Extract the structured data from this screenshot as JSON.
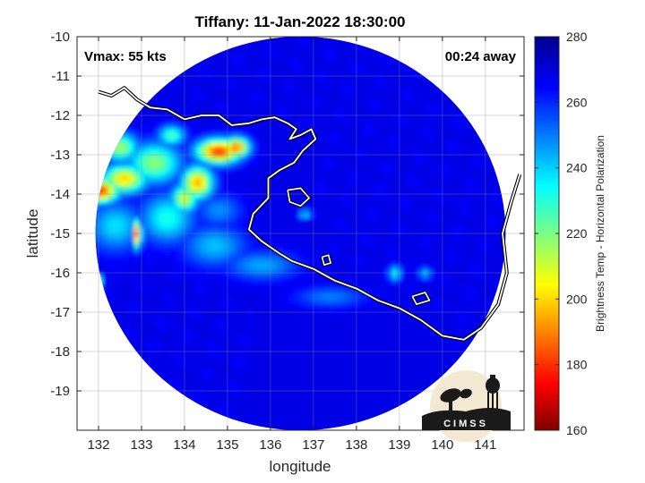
{
  "chart_data": {
    "type": "heatmap",
    "title": "Tiffany: 11-Jan-2022 18:30:00",
    "xlabel": "longitude",
    "ylabel": "latitude",
    "xlim": [
      131.5,
      141.9
    ],
    "ylim": [
      -20,
      -10
    ],
    "xticks": [
      132,
      133,
      134,
      135,
      136,
      137,
      138,
      139,
      140,
      141
    ],
    "yticks": [
      -10,
      -11,
      -12,
      -13,
      -14,
      -15,
      -16,
      -17,
      -18,
      -19
    ],
    "grid": true,
    "annotations": {
      "left": "Vmax: 55 kts",
      "right": "00:24 away"
    },
    "colorbar": {
      "label": "Brightness Temp - Horizontal Polarization",
      "range": [
        160,
        280
      ],
      "ticks": [
        160,
        180,
        200,
        220,
        240,
        260,
        280
      ],
      "colormap": "jet"
    },
    "swath": {
      "center_lon": 136.7,
      "center_lat": -15.0,
      "radius_deg_lat": 5.0
    },
    "background_temp": 268,
    "land_temp": 282,
    "features": [
      {
        "lon": 132.0,
        "lat": -13.9,
        "value": 178,
        "spread_lon": 0.45,
        "spread_lat": 0.3
      },
      {
        "lon": 132.6,
        "lat": -13.6,
        "value": 200,
        "spread_lon": 0.5,
        "spread_lat": 0.35
      },
      {
        "lon": 133.3,
        "lat": -13.2,
        "value": 218,
        "spread_lon": 0.6,
        "spread_lat": 0.5
      },
      {
        "lon": 132.5,
        "lat": -12.8,
        "value": 215,
        "spread_lon": 0.4,
        "spread_lat": 0.35
      },
      {
        "lon": 134.8,
        "lat": -12.9,
        "value": 180,
        "spread_lon": 0.5,
        "spread_lat": 0.3
      },
      {
        "lon": 135.2,
        "lat": -12.8,
        "value": 188,
        "spread_lon": 0.3,
        "spread_lat": 0.25
      },
      {
        "lon": 134.3,
        "lat": -13.7,
        "value": 195,
        "spread_lon": 0.35,
        "spread_lat": 0.4
      },
      {
        "lon": 134.0,
        "lat": -14.1,
        "value": 210,
        "spread_lon": 0.3,
        "spread_lat": 0.35
      },
      {
        "lon": 133.6,
        "lat": -14.6,
        "value": 232,
        "spread_lon": 0.6,
        "spread_lat": 0.6
      },
      {
        "lon": 132.9,
        "lat": -15.0,
        "value": 188,
        "spread_lon": 0.1,
        "spread_lat": 0.35
      },
      {
        "lon": 131.9,
        "lat": -16.2,
        "value": 172,
        "spread_lon": 0.15,
        "spread_lat": 0.15
      },
      {
        "lon": 132.4,
        "lat": -14.8,
        "value": 238,
        "spread_lon": 0.6,
        "spread_lat": 0.6
      },
      {
        "lon": 134.7,
        "lat": -15.3,
        "value": 242,
        "spread_lon": 0.7,
        "spread_lat": 0.5
      },
      {
        "lon": 135.8,
        "lat": -15.8,
        "value": 245,
        "spread_lon": 0.8,
        "spread_lat": 0.35
      },
      {
        "lon": 136.8,
        "lat": -14.5,
        "value": 238,
        "spread_lon": 0.15,
        "spread_lat": 0.12
      },
      {
        "lon": 138.9,
        "lat": -16.0,
        "value": 235,
        "spread_lon": 0.15,
        "spread_lat": 0.2
      },
      {
        "lon": 139.6,
        "lat": -16.0,
        "value": 242,
        "spread_lon": 0.15,
        "spread_lat": 0.15
      },
      {
        "lon": 137.4,
        "lat": -16.6,
        "value": 250,
        "spread_lon": 0.8,
        "spread_lat": 0.25
      },
      {
        "lon": 133.7,
        "lat": -12.5,
        "value": 225,
        "spread_lon": 0.3,
        "spread_lat": 0.25
      },
      {
        "lon": 134.8,
        "lat": -14.4,
        "value": 248,
        "spread_lon": 0.5,
        "spread_lat": 0.4
      }
    ],
    "coastline": [
      [
        132.0,
        -11.4
      ],
      [
        132.3,
        -11.5
      ],
      [
        132.6,
        -11.3
      ],
      [
        132.9,
        -11.6
      ],
      [
        133.2,
        -11.8
      ],
      [
        133.6,
        -11.85
      ],
      [
        134.0,
        -12.1
      ],
      [
        134.4,
        -12.0
      ],
      [
        134.8,
        -12.0
      ],
      [
        135.1,
        -12.25
      ],
      [
        135.5,
        -12.2
      ],
      [
        135.8,
        -12.1
      ],
      [
        136.1,
        -12.05
      ],
      [
        136.4,
        -12.2
      ],
      [
        136.6,
        -12.35
      ],
      [
        136.45,
        -12.6
      ],
      [
        136.7,
        -12.5
      ],
      [
        136.95,
        -12.35
      ],
      [
        137.05,
        -12.6
      ],
      [
        136.75,
        -12.9
      ],
      [
        136.55,
        -13.2
      ],
      [
        136.2,
        -13.4
      ],
      [
        135.95,
        -13.6
      ],
      [
        135.95,
        -14.1
      ],
      [
        135.6,
        -14.5
      ],
      [
        135.5,
        -14.9
      ],
      [
        135.8,
        -15.2
      ],
      [
        136.2,
        -15.5
      ],
      [
        136.5,
        -15.7
      ],
      [
        137.0,
        -15.9
      ],
      [
        137.5,
        -16.2
      ],
      [
        138.0,
        -16.4
      ],
      [
        138.5,
        -16.7
      ],
      [
        139.0,
        -16.9
      ],
      [
        139.5,
        -17.2
      ],
      [
        140.0,
        -17.6
      ],
      [
        140.5,
        -17.7
      ],
      [
        140.9,
        -17.4
      ],
      [
        141.3,
        -16.8
      ],
      [
        141.5,
        -16.0
      ],
      [
        141.4,
        -15.0
      ],
      [
        141.6,
        -14.2
      ],
      [
        141.8,
        -13.5
      ]
    ],
    "islands": [
      [
        [
          136.4,
          -13.9
        ],
        [
          136.7,
          -13.85
        ],
        [
          136.9,
          -14.1
        ],
        [
          136.7,
          -14.3
        ],
        [
          136.45,
          -14.2
        ],
        [
          136.4,
          -13.9
        ]
      ],
      [
        [
          139.3,
          -16.6
        ],
        [
          139.6,
          -16.5
        ],
        [
          139.7,
          -16.7
        ],
        [
          139.4,
          -16.8
        ],
        [
          139.3,
          -16.6
        ]
      ],
      [
        [
          137.2,
          -15.6
        ],
        [
          137.35,
          -15.55
        ],
        [
          137.4,
          -15.75
        ],
        [
          137.25,
          -15.8
        ],
        [
          137.2,
          -15.6
        ]
      ]
    ]
  }
}
